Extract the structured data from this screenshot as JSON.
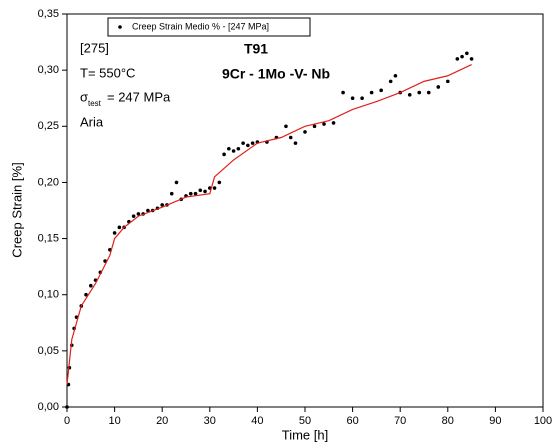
{
  "chart_data": {
    "type": "scatter",
    "annotations": [
      "[275]",
      "T= 550°C",
      "σ",
      "test",
      "= 247 MPa",
      "Aria",
      "T91",
      "9Cr - 1Mo -V- Nb"
    ],
    "x_label": "Time [h]",
    "y_label": "Creep Strain [%]",
    "xlim": [
      0,
      100
    ],
    "ylim": [
      0,
      0.35
    ],
    "xticks": [
      0,
      10,
      20,
      30,
      40,
      50,
      60,
      70,
      80,
      90,
      100
    ],
    "yticks": [
      {
        "value": 0,
        "label": "0,00"
      },
      {
        "value": 0.05,
        "label": "0,05"
      },
      {
        "value": 0.1,
        "label": "0,10"
      },
      {
        "value": 0.15,
        "label": "0,15"
      },
      {
        "value": 0.2,
        "label": "0,20"
      },
      {
        "value": 0.25,
        "label": "0,25"
      },
      {
        "value": 0.3,
        "label": "0,30"
      },
      {
        "value": 0.35,
        "label": "0,35"
      }
    ],
    "series": [
      {
        "name": "Creep Strain Medio %  - [247 MPa]",
        "mode": "markers",
        "color": "#000000",
        "x": [
          0,
          0.3,
          0.5,
          1,
          1.5,
          2,
          3,
          4,
          5,
          6,
          7,
          8,
          9,
          10,
          11,
          12,
          13,
          14,
          15,
          16,
          17,
          18,
          19,
          20,
          21,
          22,
          23,
          24,
          25,
          26,
          27,
          28,
          29,
          30,
          31,
          32,
          33,
          34,
          35,
          36,
          37,
          38,
          39,
          40,
          42,
          44,
          46,
          47,
          48,
          50,
          52,
          54,
          56,
          58,
          60,
          62,
          64,
          66,
          68,
          69,
          70,
          72,
          74,
          76,
          78,
          80,
          82,
          83,
          84,
          85
        ],
        "y": [
          0,
          0.02,
          0.035,
          0.055,
          0.07,
          0.08,
          0.09,
          0.1,
          0.108,
          0.113,
          0.12,
          0.13,
          0.14,
          0.155,
          0.16,
          0.16,
          0.165,
          0.17,
          0.172,
          0.172,
          0.175,
          0.175,
          0.177,
          0.18,
          0.18,
          0.19,
          0.2,
          0.185,
          0.188,
          0.19,
          0.19,
          0.193,
          0.192,
          0.195,
          0.195,
          0.2,
          0.225,
          0.23,
          0.228,
          0.23,
          0.235,
          0.233,
          0.235,
          0.236,
          0.236,
          0.24,
          0.25,
          0.24,
          0.235,
          0.245,
          0.25,
          0.252,
          0.253,
          0.28,
          0.275,
          0.275,
          0.28,
          0.282,
          0.29,
          0.295,
          0.28,
          0.278,
          0.28,
          0.28,
          0.285,
          0.29,
          0.31,
          0.312,
          0.315,
          0.31
        ]
      },
      {
        "mode": "line",
        "color": "#e0201b",
        "x": [
          0,
          1,
          3,
          6,
          9,
          10,
          12,
          15,
          20,
          25,
          30,
          31,
          35,
          40,
          45,
          50,
          55,
          60,
          65,
          70,
          75,
          80,
          85
        ],
        "y": [
          0.02,
          0.06,
          0.09,
          0.11,
          0.135,
          0.15,
          0.16,
          0.17,
          0.178,
          0.187,
          0.19,
          0.205,
          0.22,
          0.235,
          0.24,
          0.25,
          0.255,
          0.265,
          0.272,
          0.28,
          0.29,
          0.295,
          0.305
        ]
      }
    ]
  }
}
